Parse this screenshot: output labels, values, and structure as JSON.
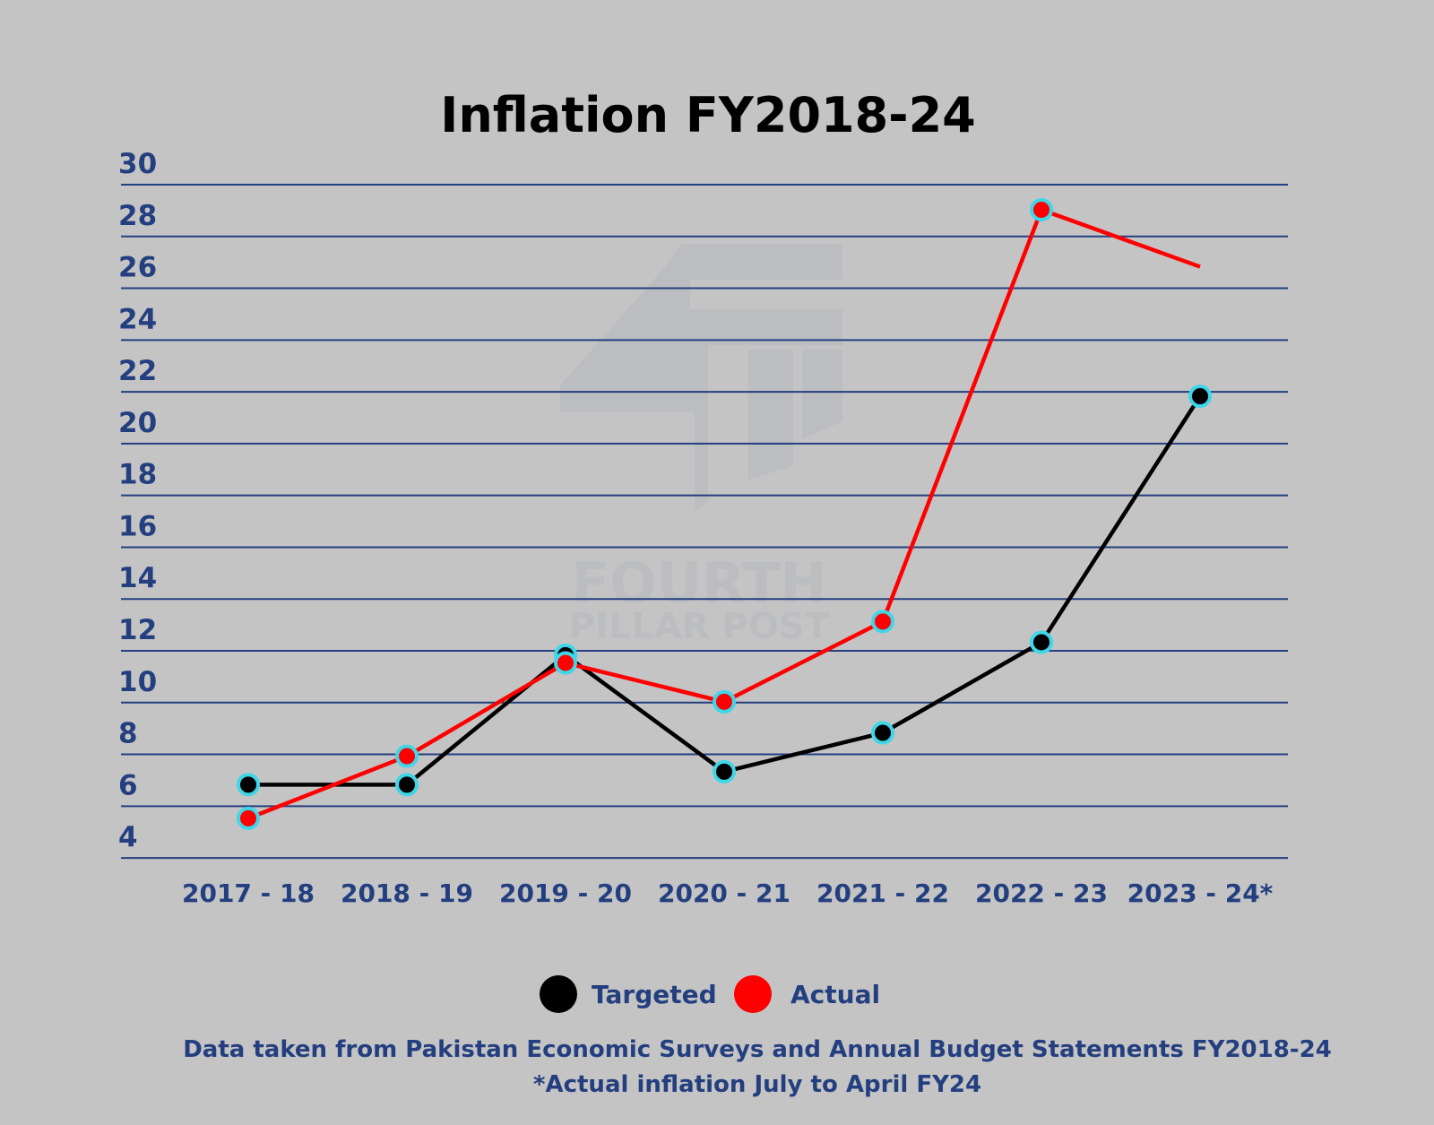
{
  "chart_data": {
    "type": "line",
    "title": "Inflation FY2018-24",
    "categories": [
      "2017 - 18",
      "2018 - 19",
      "2019 - 20",
      "2020 - 21",
      "2021 - 22",
      "2022 - 23",
      "2023 - 24*"
    ],
    "yticks": [
      4,
      6,
      8,
      10,
      12,
      14,
      16,
      18,
      20,
      22,
      24,
      26,
      28,
      30
    ],
    "ylim": [
      3,
      30
    ],
    "grid": true,
    "legend_position": "bottom-center",
    "series": [
      {
        "name": "Targeted",
        "color": "#000000",
        "values": [
          6.0,
          6.0,
          11.0,
          6.5,
          8.0,
          11.5,
          21.0
        ],
        "markers": [
          true,
          true,
          true,
          true,
          true,
          true,
          true
        ]
      },
      {
        "name": "Actual",
        "color": "#ff0000",
        "values": [
          4.7,
          7.1,
          10.7,
          9.2,
          12.3,
          28.2,
          26.0
        ],
        "markers": [
          true,
          true,
          true,
          true,
          true,
          true,
          false
        ]
      }
    ],
    "marker_outline_color": "#3fd6e8",
    "grid_color": "#243f7f"
  },
  "footer": {
    "source_note": "Data taken from Pakistan Economic Surveys and Annual Budget Statements FY2018-24",
    "footnote": "*Actual inflation July to April FY24"
  },
  "watermark": {
    "line1": "FOURTH",
    "line2": "PILLAR POST"
  }
}
